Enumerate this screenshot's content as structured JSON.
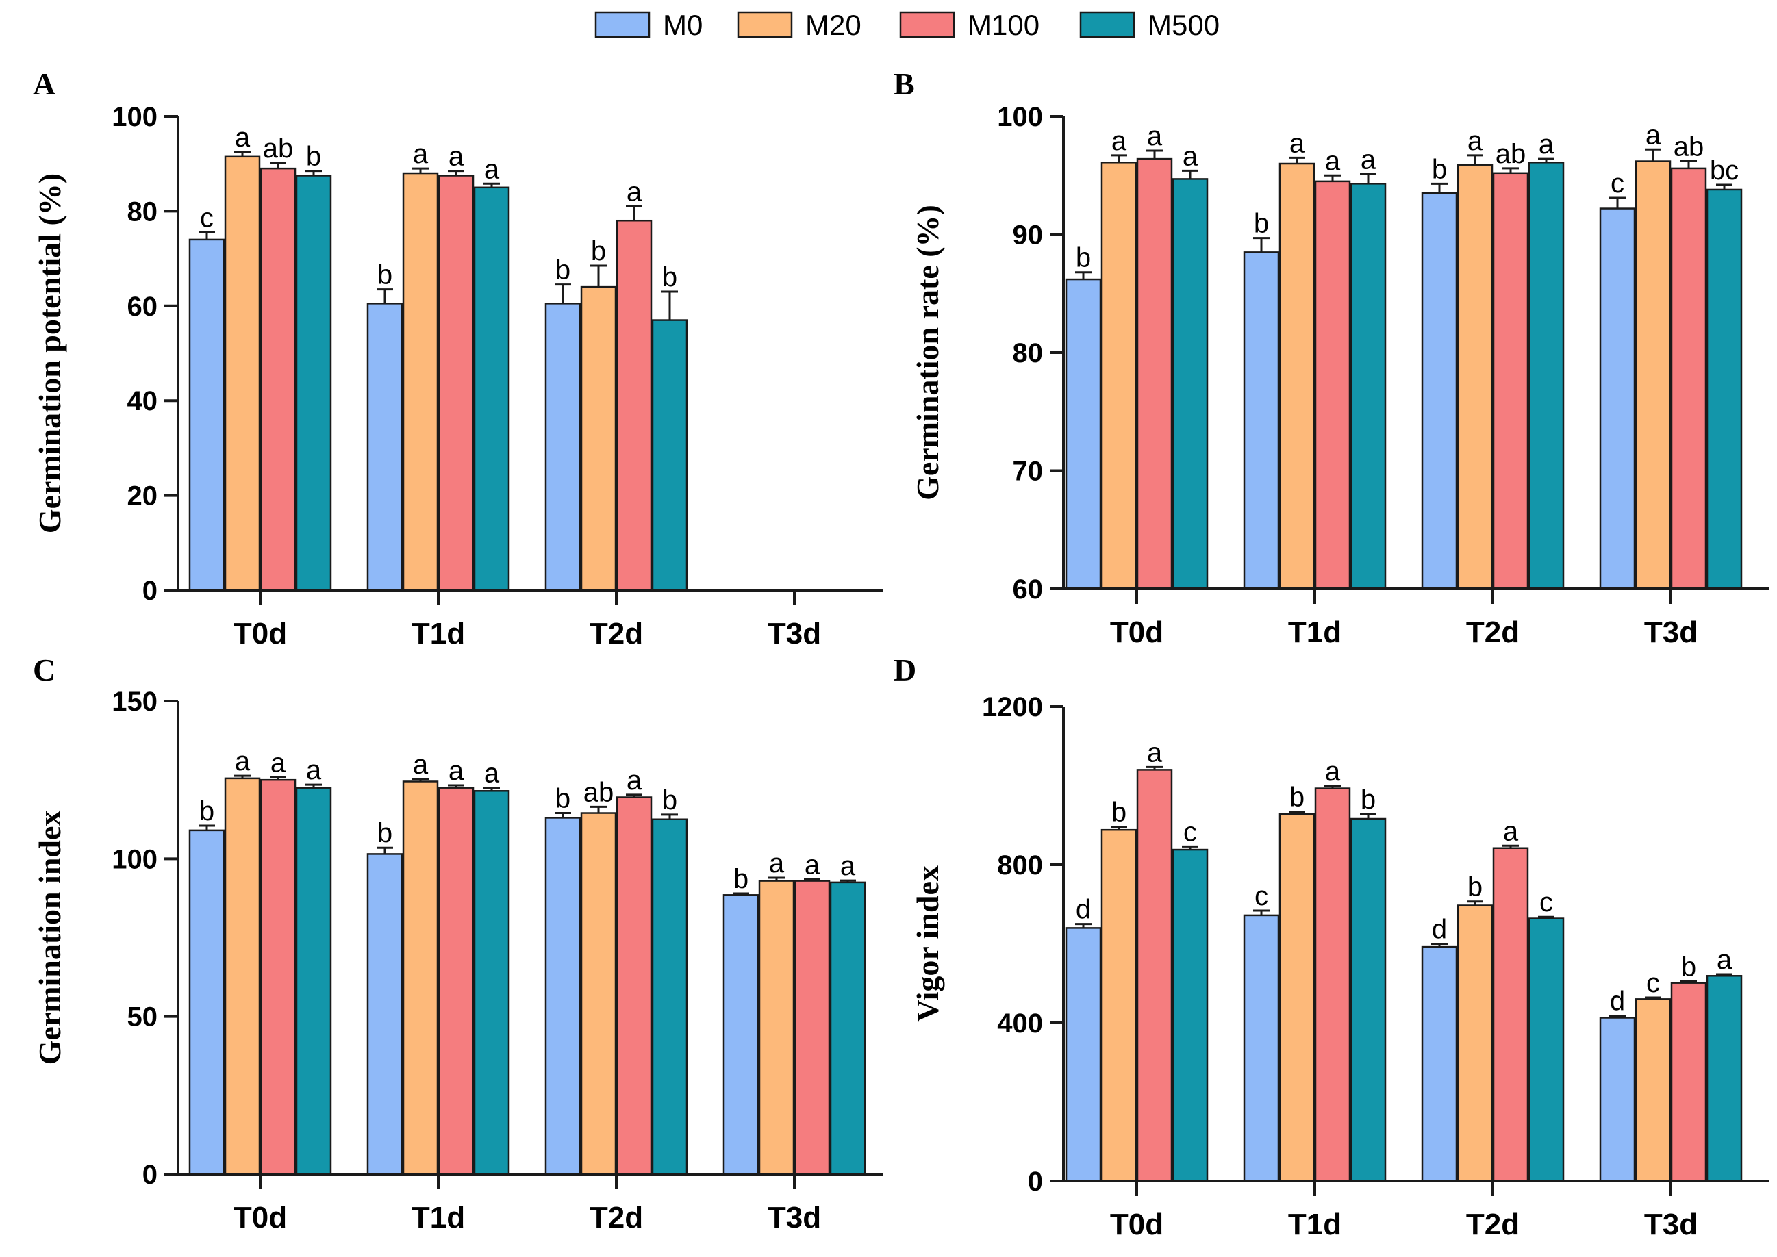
{
  "legend": [
    {
      "name": "M0",
      "color": "#8fb9f8"
    },
    {
      "name": "M20",
      "color": "#fdb97a"
    },
    {
      "name": "M100",
      "color": "#f57d7f"
    },
    {
      "name": "M500",
      "color": "#1396aa"
    }
  ],
  "chart_data": [
    {
      "panel": "A",
      "type": "bar",
      "ylabel": "Germination potential (%)",
      "ylim": [
        0,
        100
      ],
      "yticks": [
        0,
        20,
        40,
        60,
        80,
        100
      ],
      "categories": [
        "T0d",
        "T1d",
        "T2d",
        "T3d"
      ],
      "series": [
        {
          "name": "M0",
          "values": [
            74,
            60.5,
            60.5,
            null
          ],
          "errors": [
            1.5,
            3,
            4,
            null
          ],
          "letters": [
            "c",
            "b",
            "b",
            null
          ]
        },
        {
          "name": "M20",
          "values": [
            91.5,
            88,
            64,
            null
          ],
          "errors": [
            1,
            1,
            4.5,
            null
          ],
          "letters": [
            "a",
            "a",
            "b",
            null
          ]
        },
        {
          "name": "M100",
          "values": [
            89,
            87.5,
            78,
            null
          ],
          "errors": [
            1.2,
            1,
            3,
            null
          ],
          "letters": [
            "ab",
            "a",
            "a",
            null
          ]
        },
        {
          "name": "M500",
          "values": [
            87.5,
            85,
            57,
            null
          ],
          "errors": [
            1,
            0.8,
            6,
            null
          ],
          "letters": [
            "b",
            "a",
            "b",
            null
          ]
        }
      ]
    },
    {
      "panel": "B",
      "type": "bar",
      "ylabel": "Germination rate (%)",
      "ylim": [
        60,
        100
      ],
      "yticks": [
        60,
        70,
        80,
        90,
        100
      ],
      "categories": [
        "T0d",
        "T1d",
        "T2d",
        "T3d"
      ],
      "series": [
        {
          "name": "M0",
          "values": [
            86.2,
            88.5,
            93.5,
            92.2
          ],
          "errors": [
            0.6,
            1.2,
            0.8,
            0.9
          ],
          "letters": [
            "b",
            "b",
            "b",
            "c"
          ]
        },
        {
          "name": "M20",
          "values": [
            96.1,
            96,
            95.9,
            96.2
          ],
          "errors": [
            0.6,
            0.5,
            0.8,
            1
          ],
          "letters": [
            "a",
            "a",
            "a",
            "a"
          ]
        },
        {
          "name": "M100",
          "values": [
            96.4,
            94.5,
            95.2,
            95.6
          ],
          "errors": [
            0.7,
            0.5,
            0.4,
            0.6
          ],
          "letters": [
            "a",
            "a",
            "ab",
            "ab"
          ]
        },
        {
          "name": "M500",
          "values": [
            94.7,
            94.3,
            96.1,
            93.8
          ],
          "errors": [
            0.7,
            0.8,
            0.3,
            0.4
          ],
          "letters": [
            "a",
            "a",
            "a",
            "bc"
          ]
        }
      ]
    },
    {
      "panel": "C",
      "type": "bar",
      "ylabel": "Germination index",
      "ylim": [
        0,
        150
      ],
      "yticks": [
        0,
        50,
        100,
        150
      ],
      "categories": [
        "T0d",
        "T1d",
        "T2d",
        "T3d"
      ],
      "series": [
        {
          "name": "M0",
          "values": [
            109,
            101.5,
            113,
            88.5
          ],
          "errors": [
            1.5,
            2,
            1.5,
            0.5
          ],
          "letters": [
            "b",
            "b",
            "b",
            "b"
          ]
        },
        {
          "name": "M20",
          "values": [
            125.5,
            124.5,
            114.5,
            93
          ],
          "errors": [
            0.8,
            0.8,
            2,
            1
          ],
          "letters": [
            "a",
            "a",
            "ab",
            "a"
          ]
        },
        {
          "name": "M100",
          "values": [
            125,
            122.5,
            119.5,
            93
          ],
          "errors": [
            0.8,
            0.8,
            0.8,
            0.5
          ],
          "letters": [
            "a",
            "a",
            "a",
            "a"
          ]
        },
        {
          "name": "M500",
          "values": [
            122.5,
            121.5,
            112.5,
            92.5
          ],
          "errors": [
            1,
            1,
            1.5,
            0.6
          ],
          "letters": [
            "a",
            "a",
            "b",
            "a"
          ]
        }
      ]
    },
    {
      "panel": "D",
      "type": "bar",
      "ylabel": "Vigor index",
      "ylim": [
        0,
        1200
      ],
      "yticks": [
        0,
        400,
        800,
        1200
      ],
      "categories": [
        "T0d",
        "T1d",
        "T2d",
        "T3d"
      ],
      "series": [
        {
          "name": "M0",
          "values": [
            640,
            672,
            592,
            413
          ],
          "errors": [
            10,
            12,
            8,
            5
          ],
          "letters": [
            "d",
            "c",
            "d",
            "d"
          ]
        },
        {
          "name": "M20",
          "values": [
            888,
            928,
            697,
            460
          ],
          "errors": [
            8,
            6,
            10,
            4
          ],
          "letters": [
            "b",
            "b",
            "b",
            "c"
          ]
        },
        {
          "name": "M100",
          "values": [
            1040,
            993,
            842,
            501
          ],
          "errors": [
            7,
            6,
            6,
            4
          ],
          "letters": [
            "a",
            "a",
            "a",
            "b"
          ]
        },
        {
          "name": "M500",
          "values": [
            838,
            916,
            664,
            519
          ],
          "errors": [
            8,
            12,
            4,
            4
          ],
          "letters": [
            "c",
            "b",
            "c",
            "a"
          ]
        }
      ]
    }
  ]
}
